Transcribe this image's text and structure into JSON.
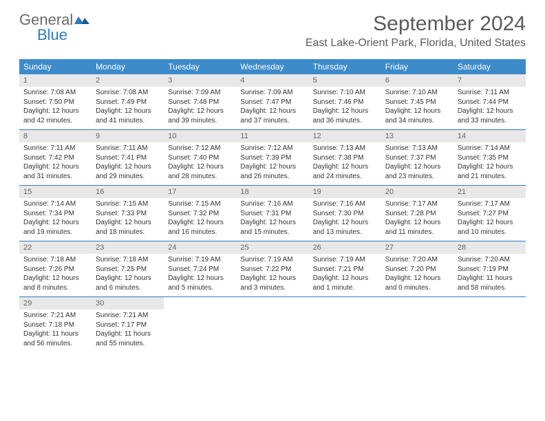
{
  "logo": {
    "line1": "General",
    "line2": "Blue",
    "general_color": "#6b6b6b",
    "blue_color": "#2d7bc0"
  },
  "title": "September 2024",
  "location": "East Lake-Orient Park, Florida, United States",
  "header_bg": "#3d8bc9",
  "header_text_color": "#ffffff",
  "daynum_bg": "#e8e8e8",
  "border_color": "#2d7bc0",
  "day_names": [
    "Sunday",
    "Monday",
    "Tuesday",
    "Wednesday",
    "Thursday",
    "Friday",
    "Saturday"
  ],
  "weeks": [
    [
      {
        "num": "1",
        "sunrise": "7:08 AM",
        "sunset": "7:50 PM",
        "daylight": "12 hours and 42 minutes."
      },
      {
        "num": "2",
        "sunrise": "7:08 AM",
        "sunset": "7:49 PM",
        "daylight": "12 hours and 41 minutes."
      },
      {
        "num": "3",
        "sunrise": "7:09 AM",
        "sunset": "7:48 PM",
        "daylight": "12 hours and 39 minutes."
      },
      {
        "num": "4",
        "sunrise": "7:09 AM",
        "sunset": "7:47 PM",
        "daylight": "12 hours and 37 minutes."
      },
      {
        "num": "5",
        "sunrise": "7:10 AM",
        "sunset": "7:46 PM",
        "daylight": "12 hours and 36 minutes."
      },
      {
        "num": "6",
        "sunrise": "7:10 AM",
        "sunset": "7:45 PM",
        "daylight": "12 hours and 34 minutes."
      },
      {
        "num": "7",
        "sunrise": "7:11 AM",
        "sunset": "7:44 PM",
        "daylight": "12 hours and 33 minutes."
      }
    ],
    [
      {
        "num": "8",
        "sunrise": "7:11 AM",
        "sunset": "7:42 PM",
        "daylight": "12 hours and 31 minutes."
      },
      {
        "num": "9",
        "sunrise": "7:11 AM",
        "sunset": "7:41 PM",
        "daylight": "12 hours and 29 minutes."
      },
      {
        "num": "10",
        "sunrise": "7:12 AM",
        "sunset": "7:40 PM",
        "daylight": "12 hours and 28 minutes."
      },
      {
        "num": "11",
        "sunrise": "7:12 AM",
        "sunset": "7:39 PM",
        "daylight": "12 hours and 26 minutes."
      },
      {
        "num": "12",
        "sunrise": "7:13 AM",
        "sunset": "7:38 PM",
        "daylight": "12 hours and 24 minutes."
      },
      {
        "num": "13",
        "sunrise": "7:13 AM",
        "sunset": "7:37 PM",
        "daylight": "12 hours and 23 minutes."
      },
      {
        "num": "14",
        "sunrise": "7:14 AM",
        "sunset": "7:35 PM",
        "daylight": "12 hours and 21 minutes."
      }
    ],
    [
      {
        "num": "15",
        "sunrise": "7:14 AM",
        "sunset": "7:34 PM",
        "daylight": "12 hours and 19 minutes."
      },
      {
        "num": "16",
        "sunrise": "7:15 AM",
        "sunset": "7:33 PM",
        "daylight": "12 hours and 18 minutes."
      },
      {
        "num": "17",
        "sunrise": "7:15 AM",
        "sunset": "7:32 PM",
        "daylight": "12 hours and 16 minutes."
      },
      {
        "num": "18",
        "sunrise": "7:16 AM",
        "sunset": "7:31 PM",
        "daylight": "12 hours and 15 minutes."
      },
      {
        "num": "19",
        "sunrise": "7:16 AM",
        "sunset": "7:30 PM",
        "daylight": "12 hours and 13 minutes."
      },
      {
        "num": "20",
        "sunrise": "7:17 AM",
        "sunset": "7:28 PM",
        "daylight": "12 hours and 11 minutes."
      },
      {
        "num": "21",
        "sunrise": "7:17 AM",
        "sunset": "7:27 PM",
        "daylight": "12 hours and 10 minutes."
      }
    ],
    [
      {
        "num": "22",
        "sunrise": "7:18 AM",
        "sunset": "7:26 PM",
        "daylight": "12 hours and 8 minutes."
      },
      {
        "num": "23",
        "sunrise": "7:18 AM",
        "sunset": "7:25 PM",
        "daylight": "12 hours and 6 minutes."
      },
      {
        "num": "24",
        "sunrise": "7:19 AM",
        "sunset": "7:24 PM",
        "daylight": "12 hours and 5 minutes."
      },
      {
        "num": "25",
        "sunrise": "7:19 AM",
        "sunset": "7:22 PM",
        "daylight": "12 hours and 3 minutes."
      },
      {
        "num": "26",
        "sunrise": "7:19 AM",
        "sunset": "7:21 PM",
        "daylight": "12 hours and 1 minute."
      },
      {
        "num": "27",
        "sunrise": "7:20 AM",
        "sunset": "7:20 PM",
        "daylight": "12 hours and 0 minutes."
      },
      {
        "num": "28",
        "sunrise": "7:20 AM",
        "sunset": "7:19 PM",
        "daylight": "11 hours and 58 minutes."
      }
    ],
    [
      {
        "num": "29",
        "sunrise": "7:21 AM",
        "sunset": "7:18 PM",
        "daylight": "11 hours and 56 minutes."
      },
      {
        "num": "30",
        "sunrise": "7:21 AM",
        "sunset": "7:17 PM",
        "daylight": "11 hours and 55 minutes."
      },
      null,
      null,
      null,
      null,
      null
    ]
  ],
  "labels": {
    "sunrise": "Sunrise:",
    "sunset": "Sunset:",
    "daylight": "Daylight:"
  }
}
